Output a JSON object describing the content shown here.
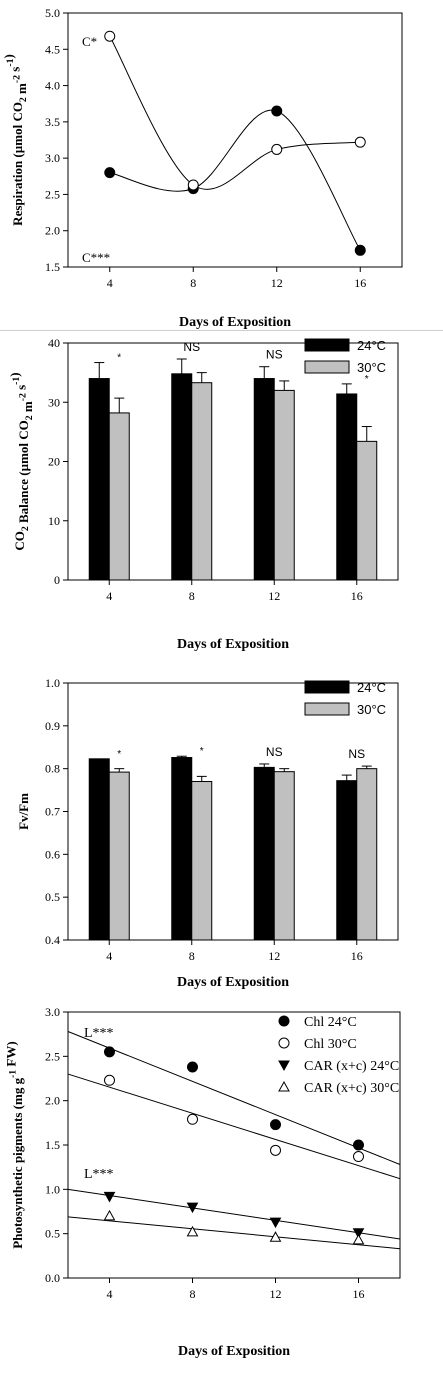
{
  "chart_data": [
    {
      "type": "line",
      "xlabel": "Days of Exposition",
      "ylabel": "Respiration (µmol CO₂ m⁻² s⁻¹)",
      "ylabel_parts": [
        "Respiration (µmol CO",
        "2",
        " m",
        "-2",
        " s",
        "-1",
        ")"
      ],
      "xlim": [
        2,
        18
      ],
      "ylim": [
        1.5,
        5.0
      ],
      "xticks": [
        "4",
        "8",
        "12",
        "16"
      ],
      "yticks": [
        "1.5",
        "2.0",
        "2.5",
        "3.0",
        "3.5",
        "4.0",
        "4.5",
        "5.0"
      ],
      "series": [
        {
          "marker": "filled-circle",
          "x": [
            4,
            8,
            12,
            16
          ],
          "y": [
            2.8,
            2.58,
            3.65,
            1.73
          ]
        },
        {
          "marker": "open-circle",
          "x": [
            4,
            8,
            12,
            16
          ],
          "y": [
            4.68,
            2.63,
            3.12,
            3.22
          ]
        }
      ],
      "annotations": [
        "C*",
        "C***"
      ]
    },
    {
      "type": "bar",
      "xlabel": "Days of Exposition",
      "ylabel": "CO₂ Balance (µmol CO₂ m⁻² s⁻¹)",
      "ylabel_parts": [
        "CO",
        "2",
        " Balance (µmol CO",
        "2",
        " m",
        "-2",
        " s",
        "-1",
        ")"
      ],
      "categories": [
        "4",
        "8",
        "12",
        "16"
      ],
      "ylim": [
        0,
        40
      ],
      "yticks": [
        "0",
        "10",
        "20",
        "30",
        "40"
      ],
      "series": [
        {
          "name": "24°C",
          "color": "#000000",
          "values": [
            34.0,
            34.8,
            34.0,
            31.4
          ],
          "errors": [
            2.7,
            2.5,
            2.0,
            1.7
          ]
        },
        {
          "name": "30°C",
          "color": "#c0c0c0",
          "values": [
            28.2,
            33.3,
            32.0,
            23.4
          ],
          "errors": [
            2.5,
            1.7,
            1.6,
            2.5
          ]
        }
      ],
      "significance": [
        "*",
        "NS",
        "NS",
        "*"
      ],
      "legend": "top-right"
    },
    {
      "type": "bar",
      "xlabel": "Days of Exposition",
      "ylabel": "Fv/Fm",
      "ylabel_parts": [
        "Fv/Fm"
      ],
      "categories": [
        "4",
        "8",
        "12",
        "16"
      ],
      "ylim": [
        0.4,
        1.0
      ],
      "yticks": [
        "0.4",
        "0.5",
        "0.6",
        "0.7",
        "0.8",
        "0.9",
        "1.0"
      ],
      "series": [
        {
          "name": "24°C",
          "color": "#000000",
          "values": [
            0.823,
            0.826,
            0.803,
            0.772
          ],
          "errors": [
            0.0,
            0.003,
            0.008,
            0.013
          ]
        },
        {
          "name": "30°C",
          "color": "#c0c0c0",
          "values": [
            0.792,
            0.77,
            0.793,
            0.8
          ],
          "errors": [
            0.008,
            0.012,
            0.007,
            0.006
          ]
        }
      ],
      "significance": [
        "*",
        "*",
        "NS",
        "NS"
      ],
      "legend": "top-right"
    },
    {
      "type": "scatter",
      "xlabel": "Days of Exposition",
      "ylabel": "Photosynthetic pigments (mg g⁻¹ FW)",
      "ylabel_parts": [
        "Photosynthetic pigments (mg g",
        "-1",
        " FW)"
      ],
      "xlim": [
        2,
        18
      ],
      "ylim": [
        0.0,
        3.0
      ],
      "xticks": [
        "4",
        "8",
        "12",
        "16"
      ],
      "yticks": [
        "0.0",
        "0.5",
        "1.0",
        "1.5",
        "2.0",
        "2.5",
        "3.0"
      ],
      "series": [
        {
          "name": "Chl 24°C",
          "marker": "filled-circle",
          "x": [
            4,
            8,
            12,
            16
          ],
          "y": [
            2.55,
            2.38,
            1.73,
            1.5
          ],
          "fit": [
            [
              2,
              2.78
            ],
            [
              18,
              1.28
            ]
          ]
        },
        {
          "name": "Chl 30°C",
          "marker": "open-circle",
          "x": [
            4,
            8,
            12,
            16
          ],
          "y": [
            2.23,
            1.79,
            1.44,
            1.37
          ],
          "fit": [
            [
              2,
              2.3
            ],
            [
              18,
              1.12
            ]
          ]
        },
        {
          "name": "CAR (x+c) 24°C",
          "marker": "filled-triangle-down",
          "x": [
            4,
            8,
            12,
            16
          ],
          "y": [
            0.92,
            0.8,
            0.63,
            0.51
          ],
          "fit": [
            [
              2,
              1.0
            ],
            [
              18,
              0.44
            ]
          ]
        },
        {
          "name": "CAR (x+c) 30°C",
          "marker": "open-triangle-up",
          "x": [
            4,
            8,
            12,
            16
          ],
          "y": [
            0.7,
            0.52,
            0.46,
            0.43
          ],
          "fit": [
            [
              2,
              0.69
            ],
            [
              18,
              0.33
            ]
          ]
        }
      ],
      "annotations": [
        "L***",
        "L***"
      ],
      "legend": "top-right"
    }
  ]
}
